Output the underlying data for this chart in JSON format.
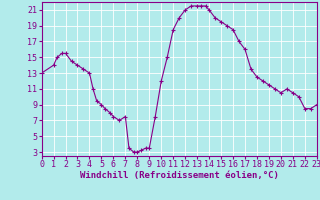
{
  "x": [
    0,
    1,
    1.3,
    1.7,
    2,
    2.5,
    3,
    3.5,
    4,
    4.3,
    4.6,
    5,
    5.3,
    5.7,
    6,
    6.5,
    7,
    7.3,
    7.7,
    8,
    8.3,
    8.7,
    9,
    9.5,
    10,
    10.5,
    11,
    11.5,
    12,
    12.5,
    13,
    13.3,
    13.7,
    14,
    14.5,
    15,
    15.5,
    16,
    16.5,
    17,
    17.5,
    18,
    18.5,
    19,
    19.5,
    20,
    20.5,
    21,
    21.5,
    22,
    22.5,
    23
  ],
  "y": [
    13,
    14,
    15,
    15.5,
    15.5,
    14.5,
    14,
    13.5,
    13,
    11,
    9.5,
    9,
    8.5,
    8,
    7.5,
    7,
    7.5,
    3.5,
    3,
    3,
    3.2,
    3.5,
    3.5,
    7.5,
    12,
    15,
    18.5,
    20,
    21,
    21.5,
    21.5,
    21.5,
    21.5,
    21,
    20,
    19.5,
    19,
    18.5,
    17,
    16,
    13.5,
    12.5,
    12,
    11.5,
    11,
    10.5,
    11,
    10.5,
    10,
    8.5,
    8.5,
    9
  ],
  "line_color": "#880088",
  "marker": "+",
  "marker_size": 3.5,
  "marker_linewidth": 0.8,
  "line_width": 0.8,
  "bg_color": "#b2ebeb",
  "grid_color": "#ffffff",
  "xlabel": "Windchill (Refroidissement éolien,°C)",
  "ylabel_ticks": [
    3,
    5,
    7,
    9,
    11,
    13,
    15,
    17,
    19,
    21
  ],
  "xtick_labels": [
    "0",
    "1",
    "2",
    "3",
    "4",
    "5",
    "6",
    "7",
    "8",
    "9",
    "10",
    "11",
    "12",
    "13",
    "14",
    "15",
    "16",
    "17",
    "18",
    "19",
    "20",
    "21",
    "22",
    "23"
  ],
  "xlim": [
    0,
    23
  ],
  "ylim": [
    2.5,
    22
  ],
  "xlabel_color": "#880088",
  "tick_color": "#880088",
  "spine_color": "#880088",
  "axis_label_fontsize": 6.5,
  "tick_fontsize": 6
}
